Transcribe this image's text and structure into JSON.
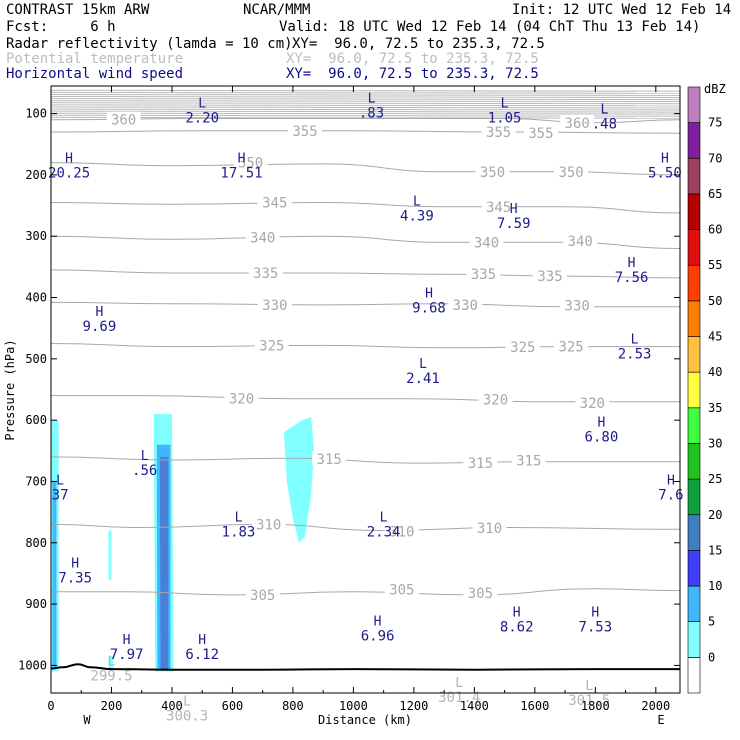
{
  "header": {
    "model": "CONTRAST 15km ARW",
    "org": "NCAR/MMM",
    "init": "Init: 12 UTC Wed 12 Feb 14",
    "fcst": "Fcst:     6 h",
    "valid": "Valid: 18 UTC Wed 12 Feb 14 (04 ChT Thu 13 Feb 14)",
    "field1": "Radar reflectivity (lamda = 10 cm)",
    "field1_xy": "XY=  96.0, 72.5 to 235.3, 72.5",
    "field2": "Potential temperature",
    "field2_xy": "XY=  96.0, 72.5 to 235.3, 72.5",
    "field3": "Horizontal wind speed",
    "field3_xy": "XY=  96.0, 72.5 to 235.3, 72.5"
  },
  "colors": {
    "field1": "#000000",
    "field2": "#bcbcbc",
    "field3": "#0c0c8c",
    "contour": "#a8a8a8",
    "wind_label": "#1c1c8c"
  },
  "chart_data": {
    "type": "cross-section",
    "xlabel": "Distance (km)",
    "ylabel": "Pressure (hPa)",
    "xlim": [
      0,
      2080
    ],
    "ylim": [
      1045,
      55
    ],
    "x_ticks": [
      "0",
      "200",
      "400",
      "600",
      "800",
      "1000",
      "1200",
      "1400",
      "1600",
      "1800",
      "2000"
    ],
    "y_ticks": [
      "100",
      "200",
      "300",
      "400",
      "500",
      "600",
      "700",
      "800",
      "900",
      "1000"
    ],
    "x_end_labels": {
      "left": "W",
      "right": "E"
    },
    "colorbar": {
      "unit": "dBZ",
      "levels": [
        "0",
        "5",
        "10",
        "15",
        "20",
        "25",
        "30",
        "35",
        "40",
        "45",
        "50",
        "55",
        "60",
        "65",
        "70",
        "75"
      ],
      "colors": [
        "#ffffff",
        "#7fffff",
        "#3fb6ff",
        "#3f3fff",
        "#3f7fbf",
        "#0fa03f",
        "#1fc41f",
        "#3fff3f",
        "#ffff3f",
        "#ffbf3f",
        "#ff7f00",
        "#ff3f00",
        "#df0f0f",
        "#b40000",
        "#9e3f5e",
        "#7f1f9f",
        "#bf7fbf"
      ]
    },
    "theta_contours": [
      {
        "level": 305,
        "points": [
          [
            0,
            880
          ],
          [
            250,
            880
          ],
          [
            600,
            885
          ],
          [
            1000,
            880
          ],
          [
            1400,
            885
          ],
          [
            1800,
            875
          ],
          [
            2080,
            878
          ]
        ],
        "labels": [
          [
            700,
            885
          ],
          [
            1160,
            876
          ],
          [
            1420,
            882
          ]
        ]
      },
      {
        "level": 310,
        "points": [
          [
            0,
            770
          ],
          [
            300,
            775
          ],
          [
            700,
            770
          ],
          [
            1100,
            780
          ],
          [
            1500,
            775
          ],
          [
            2080,
            778
          ]
        ],
        "labels": [
          [
            720,
            770
          ],
          [
            1160,
            782
          ],
          [
            1450,
            776
          ]
        ]
      },
      {
        "level": 315,
        "points": [
          [
            0,
            660
          ],
          [
            400,
            665
          ],
          [
            800,
            662
          ],
          [
            1200,
            670
          ],
          [
            1600,
            668
          ],
          [
            2080,
            668
          ]
        ],
        "labels": [
          [
            920,
            663
          ],
          [
            1420,
            670
          ],
          [
            1580,
            666
          ]
        ]
      },
      {
        "level": 320,
        "points": [
          [
            0,
            560
          ],
          [
            300,
            560
          ],
          [
            800,
            565
          ],
          [
            1200,
            565
          ],
          [
            1650,
            570
          ],
          [
            2080,
            570
          ]
        ],
        "labels": [
          [
            630,
            565
          ],
          [
            1470,
            566
          ],
          [
            1790,
            572
          ]
        ]
      },
      {
        "level": 325,
        "points": [
          [
            0,
            475
          ],
          [
            400,
            480
          ],
          [
            900,
            478
          ],
          [
            1300,
            482
          ],
          [
            1700,
            480
          ],
          [
            2080,
            480
          ]
        ],
        "labels": [
          [
            730,
            478
          ],
          [
            1560,
            481
          ],
          [
            1720,
            480
          ]
        ]
      },
      {
        "level": 330,
        "points": [
          [
            0,
            408
          ],
          [
            400,
            410
          ],
          [
            900,
            412
          ],
          [
            1300,
            410
          ],
          [
            1700,
            415
          ],
          [
            2080,
            415
          ]
        ],
        "labels": [
          [
            740,
            412
          ],
          [
            1370,
            412
          ],
          [
            1740,
            413
          ]
        ]
      },
      {
        "level": 335,
        "points": [
          [
            0,
            355
          ],
          [
            400,
            360
          ],
          [
            900,
            360
          ],
          [
            1300,
            362
          ],
          [
            1700,
            365
          ],
          [
            2080,
            368
          ]
        ],
        "labels": [
          [
            710,
            360
          ],
          [
            1430,
            362
          ],
          [
            1650,
            365
          ]
        ]
      },
      {
        "level": 340,
        "points": [
          [
            0,
            300
          ],
          [
            400,
            305
          ],
          [
            900,
            300
          ],
          [
            1300,
            310
          ],
          [
            1700,
            310
          ],
          [
            2080,
            320
          ]
        ],
        "labels": [
          [
            700,
            302
          ],
          [
            1440,
            310
          ],
          [
            1750,
            308
          ]
        ]
      },
      {
        "level": 345,
        "points": [
          [
            0,
            245
          ],
          [
            400,
            248
          ],
          [
            900,
            245
          ],
          [
            1300,
            252
          ],
          [
            1700,
            252
          ],
          [
            2080,
            262
          ]
        ],
        "labels": [
          [
            740,
            245
          ],
          [
            1480,
            252
          ]
        ]
      },
      {
        "level": 350,
        "points": [
          [
            0,
            180
          ],
          [
            400,
            185
          ],
          [
            900,
            182
          ],
          [
            1300,
            195
          ],
          [
            1700,
            195
          ],
          [
            2080,
            200
          ]
        ],
        "labels": [
          [
            660,
            180
          ],
          [
            1460,
            195
          ],
          [
            1720,
            195
          ]
        ]
      },
      {
        "level": 355,
        "points": [
          [
            0,
            130
          ],
          [
            500,
            128
          ],
          [
            1000,
            128
          ],
          [
            1500,
            130
          ],
          [
            2080,
            132
          ]
        ],
        "labels": [
          [
            840,
            128
          ],
          [
            1480,
            130
          ],
          [
            1620,
            132
          ]
        ]
      },
      {
        "level": 360,
        "points": [
          [
            0,
            110
          ],
          [
            500,
            108
          ],
          [
            1000,
            108
          ],
          [
            1500,
            108
          ],
          [
            1800,
            115
          ],
          [
            2080,
            110
          ]
        ],
        "labels": [
          [
            240,
            110
          ],
          [
            1740,
            115
          ]
        ]
      }
    ],
    "wind_extrema": [
      {
        "type": "L",
        "value": "2.20",
        "x": 500,
        "p": 90
      },
      {
        "type": "L",
        "value": ".83",
        "x": 1060,
        "p": 82
      },
      {
        "type": "L",
        "value": "1.05",
        "x": 1500,
        "p": 90
      },
      {
        "type": "L",
        "value": ".48",
        "x": 1830,
        "p": 100
      },
      {
        "type": "H",
        "value": "20.25",
        "x": 60,
        "p": 180
      },
      {
        "type": "H",
        "value": "17.51",
        "x": 630,
        "p": 180
      },
      {
        "type": "H",
        "value": "5.50",
        "x": 2030,
        "p": 180
      },
      {
        "type": "L",
        "value": "4.39",
        "x": 1210,
        "p": 250
      },
      {
        "type": "H",
        "value": "7.59",
        "x": 1530,
        "p": 262
      },
      {
        "type": "H",
        "value": "7.56",
        "x": 1920,
        "p": 350
      },
      {
        "type": "H",
        "value": "9.69",
        "x": 160,
        "p": 430
      },
      {
        "type": "H",
        "value": "9.68",
        "x": 1250,
        "p": 400
      },
      {
        "type": "L",
        "value": "2.53",
        "x": 1930,
        "p": 475
      },
      {
        "type": "L",
        "value": "2.41",
        "x": 1230,
        "p": 515
      },
      {
        "type": "H",
        "value": "6.80",
        "x": 1820,
        "p": 610
      },
      {
        "type": "L",
        "value": ".56",
        "x": 310,
        "p": 665
      },
      {
        "type": "L",
        "value": "37",
        "x": 30,
        "p": 705
      },
      {
        "type": "H",
        "value": "7.6",
        "x": 2050,
        "p": 705
      },
      {
        "type": "L",
        "value": "1.83",
        "x": 620,
        "p": 765
      },
      {
        "type": "L",
        "value": "2.34",
        "x": 1100,
        "p": 765
      },
      {
        "type": "H",
        "value": "7.35",
        "x": 80,
        "p": 840
      },
      {
        "type": "H",
        "value": "8.62",
        "x": 1540,
        "p": 920
      },
      {
        "type": "H",
        "value": "7.53",
        "x": 1800,
        "p": 920
      },
      {
        "type": "H",
        "value": "6.96",
        "x": 1080,
        "p": 935
      },
      {
        "type": "H",
        "value": "7.97",
        "x": 250,
        "p": 965
      },
      {
        "type": "H",
        "value": "6.12",
        "x": 500,
        "p": 965
      }
    ],
    "theta_extrema": [
      {
        "type": "L",
        "value": "299.5",
        "x": 200,
        "p": 1000
      },
      {
        "type": "L",
        "value": "300.3",
        "x": 450,
        "p": 1065
      },
      {
        "type": "L",
        "value": "301.4",
        "x": 1350,
        "p": 1035
      },
      {
        "type": "L",
        "value": "301.5",
        "x": 1780,
        "p": 1040
      }
    ],
    "reflectivity_cells": [
      {
        "dbz_band": "5-10",
        "outline": [
          [
            0,
            600
          ],
          [
            25,
            600
          ],
          [
            25,
            1010
          ],
          [
            0,
            1010
          ]
        ]
      },
      {
        "dbz_band": "10-15",
        "outline": [
          [
            5,
            700
          ],
          [
            18,
            700
          ],
          [
            18,
            1005
          ],
          [
            5,
            1005
          ]
        ]
      },
      {
        "dbz_band": "5-10",
        "outline": [
          [
            340,
            590
          ],
          [
            400,
            590
          ],
          [
            405,
            1010
          ],
          [
            345,
            1010
          ]
        ]
      },
      {
        "dbz_band": "10-15",
        "outline": [
          [
            350,
            640
          ],
          [
            395,
            640
          ],
          [
            395,
            1008
          ],
          [
            352,
            1008
          ]
        ]
      },
      {
        "dbz_band": "15-20",
        "outline": [
          [
            360,
            660
          ],
          [
            388,
            660
          ],
          [
            388,
            1006
          ],
          [
            362,
            1006
          ]
        ]
      },
      {
        "dbz_band": "5-10",
        "outline": [
          [
            770,
            620
          ],
          [
            800,
            610
          ],
          [
            830,
            600
          ],
          [
            860,
            595
          ],
          [
            870,
            650
          ],
          [
            860,
            720
          ],
          [
            840,
            790
          ],
          [
            820,
            800
          ],
          [
            800,
            760
          ],
          [
            780,
            700
          ]
        ]
      },
      {
        "dbz_band": "5-10",
        "outline": [
          [
            190,
            780
          ],
          [
            200,
            780
          ],
          [
            200,
            860
          ],
          [
            190,
            860
          ]
        ]
      },
      {
        "dbz_band": "5-10",
        "outline": [
          [
            190,
            985
          ],
          [
            205,
            985
          ],
          [
            205,
            1005
          ],
          [
            190,
            1005
          ]
        ]
      }
    ],
    "terrain": [
      [
        0,
        1005
      ],
      [
        40,
        1003
      ],
      [
        90,
        998
      ],
      [
        130,
        1003
      ],
      [
        200,
        1006
      ],
      [
        400,
        1007
      ],
      [
        700,
        1007
      ],
      [
        1000,
        1006
      ],
      [
        1400,
        1007
      ],
      [
        1800,
        1006
      ],
      [
        2080,
        1006
      ]
    ]
  }
}
